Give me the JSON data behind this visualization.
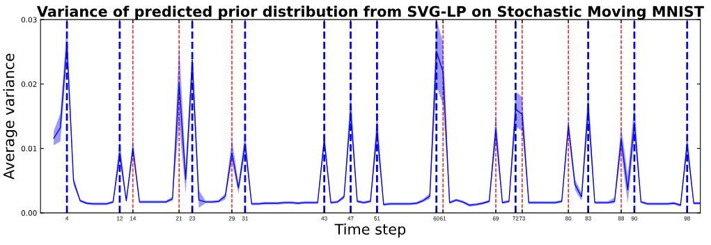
{
  "chart_data": {
    "type": "line",
    "title": "Variance of predicted prior distribution from SVG-LP on Stochastic Moving MNIST",
    "xlabel": "Time step",
    "ylabel": "Average variance",
    "x": [
      2,
      3,
      4,
      5,
      6,
      7,
      8,
      9,
      10,
      11,
      12,
      13,
      14,
      15,
      16,
      17,
      18,
      19,
      20,
      21,
      22,
      23,
      24,
      25,
      26,
      27,
      28,
      29,
      30,
      31,
      32,
      33,
      34,
      35,
      36,
      37,
      38,
      39,
      40,
      41,
      42,
      43,
      44,
      45,
      46,
      47,
      48,
      49,
      50,
      51,
      52,
      53,
      54,
      55,
      56,
      57,
      58,
      59,
      60,
      61,
      62,
      63,
      64,
      65,
      66,
      67,
      68,
      69,
      70,
      71,
      72,
      73,
      74,
      75,
      76,
      77,
      78,
      79,
      80,
      81,
      82,
      83,
      84,
      85,
      86,
      87,
      88,
      89,
      90,
      91,
      92,
      93,
      94,
      95,
      96,
      97,
      98,
      99,
      100
    ],
    "series": [
      {
        "color": "#0000ff",
        "values": [
          0.0116,
          0.0132,
          0.0262,
          0.005,
          0.0019,
          0.0015,
          0.0014,
          0.0014,
          0.0014,
          0.0017,
          0.0093,
          0.0019,
          0.01,
          0.0017,
          0.0017,
          0.0017,
          0.0017,
          0.0017,
          0.0022,
          0.0201,
          0.0052,
          0.0237,
          0.002,
          0.0017,
          0.0017,
          0.0018,
          0.0026,
          0.0093,
          0.0039,
          0.0107,
          0.0014,
          0.0014,
          0.0015,
          0.0015,
          0.0015,
          0.0016,
          0.0016,
          0.0015,
          0.0016,
          0.0016,
          0.0016,
          0.0114,
          0.0016,
          0.0017,
          0.0025,
          0.0157,
          0.0018,
          0.0016,
          0.0018,
          0.0129,
          0.0013,
          0.0014,
          0.0014,
          0.0014,
          0.0014,
          0.0015,
          0.0019,
          0.0026,
          0.0251,
          0.0219,
          0.0016,
          0.002,
          0.0017,
          0.0012,
          0.0013,
          0.0015,
          0.0018,
          0.0129,
          0.0016,
          0.0018,
          0.0161,
          0.0153,
          0.0016,
          0.0016,
          0.0016,
          0.0016,
          0.0016,
          0.0018,
          0.0136,
          0.0044,
          0.0025,
          0.0165,
          0.0016,
          0.0016,
          0.0016,
          0.0018,
          0.0114,
          0.0036,
          0.014,
          0.0017,
          0.0014,
          0.0014,
          0.0014,
          0.0014,
          0.0015,
          0.0012,
          0.0107,
          0.0015,
          0.0015
        ],
        "upper": [
          0.0127,
          0.0154,
          0.029,
          0.0055,
          0.0021,
          0.0017,
          0.0016,
          0.0016,
          0.0016,
          0.0019,
          0.0112,
          0.0021,
          0.0115,
          0.0019,
          0.0019,
          0.0019,
          0.0019,
          0.0019,
          0.0025,
          0.0262,
          0.007,
          0.0252,
          0.0035,
          0.0019,
          0.0019,
          0.002,
          0.003,
          0.0115,
          0.0045,
          0.0125,
          0.0016,
          0.0016,
          0.0017,
          0.0017,
          0.0017,
          0.0018,
          0.0018,
          0.0017,
          0.0018,
          0.0018,
          0.0018,
          0.0124,
          0.0018,
          0.0019,
          0.0028,
          0.0192,
          0.002,
          0.0018,
          0.002,
          0.0154,
          0.0015,
          0.0016,
          0.0016,
          0.0016,
          0.0016,
          0.0017,
          0.0022,
          0.003,
          0.03,
          0.0265,
          0.0018,
          0.0022,
          0.0019,
          0.0014,
          0.0015,
          0.0017,
          0.002,
          0.0154,
          0.0018,
          0.002,
          0.0188,
          0.018,
          0.0018,
          0.0018,
          0.0018,
          0.0018,
          0.0018,
          0.002,
          0.0146,
          0.0052,
          0.0031,
          0.0193,
          0.0018,
          0.0018,
          0.0018,
          0.0024,
          0.0134,
          0.0058,
          0.017,
          0.0019,
          0.0016,
          0.0016,
          0.0016,
          0.0016,
          0.0017,
          0.0014,
          0.0123,
          0.0017,
          0.0017
        ],
        "lower": [
          0.0105,
          0.0111,
          0.024,
          0.0043,
          0.0017,
          0.0013,
          0.0012,
          0.0012,
          0.0012,
          0.0015,
          0.008,
          0.0017,
          0.009,
          0.0015,
          0.0015,
          0.0015,
          0.0015,
          0.0015,
          0.0019,
          0.014,
          0.003,
          0.02,
          0.0008,
          0.0015,
          0.0015,
          0.0016,
          0.0021,
          0.008,
          0.003,
          0.0095,
          0.0012,
          0.0012,
          0.0013,
          0.0013,
          0.0013,
          0.0014,
          0.0014,
          0.0013,
          0.0014,
          0.0014,
          0.0014,
          0.01,
          0.0014,
          0.0015,
          0.0022,
          0.014,
          0.0016,
          0.0014,
          0.0016,
          0.011,
          0.0011,
          0.0012,
          0.0012,
          0.0012,
          0.0012,
          0.0013,
          0.0017,
          0.0022,
          0.0197,
          0.0168,
          0.0014,
          0.0018,
          0.0015,
          0.001,
          0.0011,
          0.0013,
          0.0016,
          0.011,
          0.0014,
          0.0016,
          0.0134,
          0.0127,
          0.0014,
          0.0014,
          0.0014,
          0.0014,
          0.0014,
          0.0016,
          0.012,
          0.0036,
          0.0019,
          0.014,
          0.0014,
          0.0014,
          0.0014,
          0.0015,
          0.0095,
          0.0015,
          0.012,
          0.0015,
          0.0012,
          0.0012,
          0.0012,
          0.0012,
          0.0013,
          0.001,
          0.0095,
          0.0013,
          0.0013
        ]
      }
    ],
    "xlim": [
      0,
      100
    ],
    "xticks": [
      4,
      12,
      14,
      21,
      23,
      29,
      31,
      43,
      47,
      51,
      60,
      61,
      69,
      72,
      73,
      80,
      83,
      88,
      90,
      98
    ],
    "ylim": [
      0,
      0.03
    ],
    "yticks": [
      {
        "value": 0,
        "label": "0.00"
      },
      {
        "value": 0.01,
        "label": "0.01"
      },
      {
        "value": 0.02,
        "label": "0.02"
      },
      {
        "value": 0.03,
        "label": "0.03"
      }
    ],
    "grid": false,
    "legend": false,
    "ref_lines": [
      {
        "axis": "x",
        "value": 4,
        "color": "#0000ff",
        "line_style": "dashed"
      },
      {
        "axis": "x",
        "value": 12,
        "color": "#0000ff",
        "line_style": "dashed"
      },
      {
        "axis": "x",
        "value": 14,
        "color": "#ff0000",
        "line_style": "dashed"
      },
      {
        "axis": "x",
        "value": 21,
        "color": "#ff0000",
        "line_style": "dashed"
      },
      {
        "axis": "x",
        "value": 23,
        "color": "#0000ff",
        "line_style": "dashed"
      },
      {
        "axis": "x",
        "value": 29,
        "color": "#ff0000",
        "line_style": "dashed"
      },
      {
        "axis": "x",
        "value": 31,
        "color": "#0000ff",
        "line_style": "dashed"
      },
      {
        "axis": "x",
        "value": 43,
        "color": "#0000ff",
        "line_style": "dashed"
      },
      {
        "axis": "x",
        "value": 47,
        "color": "#0000ff",
        "line_style": "dashed"
      },
      {
        "axis": "x",
        "value": 51,
        "color": "#0000ff",
        "line_style": "dashed"
      },
      {
        "axis": "x",
        "value": 60,
        "color": "#0000ff",
        "line_style": "dashed"
      },
      {
        "axis": "x",
        "value": 61,
        "color": "#ff0000",
        "line_style": "dashed"
      },
      {
        "axis": "x",
        "value": 69,
        "color": "#ff0000",
        "line_style": "dashed"
      },
      {
        "axis": "x",
        "value": 72,
        "color": "#0000ff",
        "line_style": "dashed"
      },
      {
        "axis": "x",
        "value": 73,
        "color": "#ff0000",
        "line_style": "dashed"
      },
      {
        "axis": "x",
        "value": 80,
        "color": "#ff0000",
        "line_style": "dashed"
      },
      {
        "axis": "x",
        "value": 83,
        "color": "#0000ff",
        "line_style": "dashed"
      },
      {
        "axis": "x",
        "value": 88,
        "color": "#ff0000",
        "line_style": "dashed"
      },
      {
        "axis": "x",
        "value": 90,
        "color": "#0000ff",
        "line_style": "dashed"
      },
      {
        "axis": "x",
        "value": 98,
        "color": "#0000ff",
        "line_style": "dashed"
      }
    ]
  }
}
